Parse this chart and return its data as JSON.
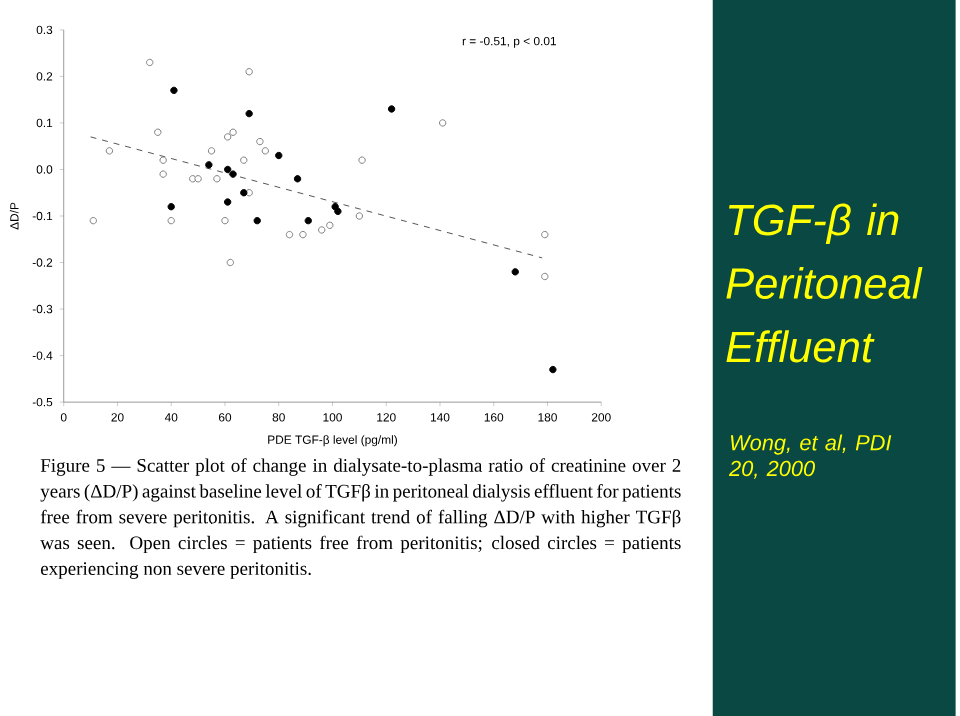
{
  "chart_data": {
    "type": "scatter",
    "title": "TGF-β in Peritoneal Effluent",
    "subtitle": "Wong, et al, PDI 20, 2000",
    "xlabel": "PDE TGF-β level (pg/ml)",
    "ylabel": "ΔD/P",
    "annotations": [
      "r = -0.51, p < 0.01",
      "Figure 5 — Scatter plot of change in dialysate-to-plasma ratio of creatinine over 2 years (ΔD/P) against baseline level of TGFβ in peritoneal dialysis effluent for patients free from severe peritonitis. A significant trend of falling ΔD/P with higher TGFβ was seen. Open circles = patients free from peritonitis; closed circles = patients experiencing non severe peritonitis."
    ],
    "xlim": [
      0,
      200
    ],
    "ylim": [
      -0.5,
      0.3
    ],
    "xticks": [
      0,
      20,
      40,
      60,
      80,
      100,
      120,
      140,
      160,
      180,
      200
    ],
    "yticks": [
      -0.5,
      -0.4,
      -0.3,
      -0.2,
      -0.1,
      {
        "value": 0,
        "label": "0.0"
      },
      0.1,
      0.2,
      0.3
    ],
    "series": [
      {
        "marker": "circle",
        "color": "#808080",
        "x": [
          11,
          17,
          32,
          35,
          37,
          37,
          40,
          48,
          50,
          57,
          55,
          60,
          62,
          61,
          63,
          67,
          69,
          69,
          73,
          75,
          84,
          89,
          96,
          99,
          110,
          111,
          141,
          179,
          179
        ],
        "values": [
          -0.11,
          0.04,
          0.23,
          0.08,
          0.02,
          -0.01,
          -0.11,
          -0.02,
          -0.02,
          -0.02,
          0.04,
          -0.11,
          -0.2,
          0.07,
          0.08,
          0.02,
          0.21,
          -0.05,
          0.06,
          0.04,
          -0.14,
          -0.14,
          -0.13,
          -0.12,
          -0.1,
          0.02,
          0.1,
          -0.14,
          -0.23
        ]
      },
      {
        "marker": "circle",
        "color": "#000000",
        "x": [
          41,
          40,
          54,
          61,
          63,
          61,
          67,
          69,
          72,
          80,
          87,
          91,
          101,
          102,
          122,
          168,
          182
        ],
        "values": [
          0.17,
          -0.08,
          0.01,
          0.0,
          -0.01,
          -0.07,
          -0.05,
          0.12,
          -0.11,
          0.03,
          -0.02,
          -0.11,
          -0.08,
          -0.09,
          0.13,
          -0.22,
          -0.43
        ]
      },
      {
        "type": "line",
        "line_style": "dashed",
        "color": "#555555",
        "x": [
          10,
          178
        ],
        "values": [
          0.07,
          -0.19
        ]
      }
    ]
  }
}
